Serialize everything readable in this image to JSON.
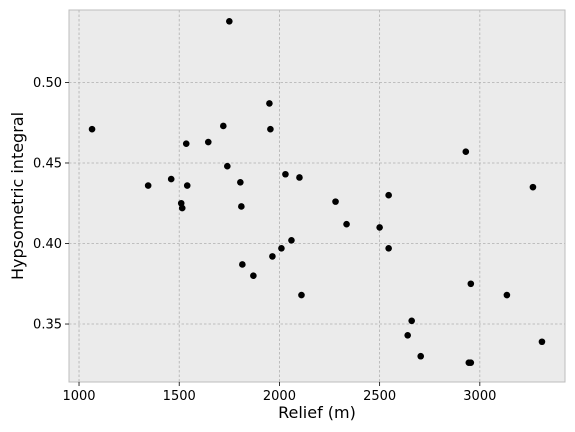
{
  "chart_data": {
    "type": "scatter",
    "title": "",
    "xlabel": "Relief (m)",
    "ylabel": "Hypsometric integral",
    "xlim": [
      950,
      3425
    ],
    "ylim": [
      0.314,
      0.545
    ],
    "xticks": [
      1000,
      1500,
      2000,
      2500,
      3000
    ],
    "xtick_labels": [
      "1000",
      "1500",
      "2000",
      "2500",
      "3000"
    ],
    "yticks": [
      0.35,
      0.4,
      0.45,
      0.5
    ],
    "ytick_labels": [
      "0.35",
      "0.40",
      "0.45",
      "0.50"
    ],
    "grid": true,
    "style": {
      "background": "#ebebeb",
      "grid_color": "#b0b0b0",
      "frame_color": "#bcbcbc",
      "marker_color": "#000000"
    },
    "points": [
      {
        "x": 1750,
        "y": 0.538
      },
      {
        "x": 1065,
        "y": 0.471
      },
      {
        "x": 1950,
        "y": 0.487
      },
      {
        "x": 1720,
        "y": 0.473
      },
      {
        "x": 1955,
        "y": 0.471
      },
      {
        "x": 1535,
        "y": 0.462
      },
      {
        "x": 1645,
        "y": 0.463
      },
      {
        "x": 1740,
        "y": 0.448
      },
      {
        "x": 2030,
        "y": 0.443
      },
      {
        "x": 2100,
        "y": 0.441
      },
      {
        "x": 1460,
        "y": 0.44
      },
      {
        "x": 1345,
        "y": 0.436
      },
      {
        "x": 1540,
        "y": 0.436
      },
      {
        "x": 1805,
        "y": 0.438
      },
      {
        "x": 1510,
        "y": 0.425
      },
      {
        "x": 1515,
        "y": 0.422
      },
      {
        "x": 1810,
        "y": 0.423
      },
      {
        "x": 2280,
        "y": 0.426
      },
      {
        "x": 2335,
        "y": 0.412
      },
      {
        "x": 2500,
        "y": 0.41
      },
      {
        "x": 2545,
        "y": 0.43
      },
      {
        "x": 2930,
        "y": 0.457
      },
      {
        "x": 3265,
        "y": 0.435
      },
      {
        "x": 2060,
        "y": 0.402
      },
      {
        "x": 2010,
        "y": 0.397
      },
      {
        "x": 2545,
        "y": 0.397
      },
      {
        "x": 1965,
        "y": 0.392
      },
      {
        "x": 1815,
        "y": 0.387
      },
      {
        "x": 1870,
        "y": 0.38
      },
      {
        "x": 2955,
        "y": 0.375
      },
      {
        "x": 2110,
        "y": 0.368
      },
      {
        "x": 3135,
        "y": 0.368
      },
      {
        "x": 2660,
        "y": 0.352
      },
      {
        "x": 2640,
        "y": 0.343
      },
      {
        "x": 3310,
        "y": 0.339
      },
      {
        "x": 2705,
        "y": 0.33
      },
      {
        "x": 2945,
        "y": 0.326
      },
      {
        "x": 2955,
        "y": 0.326
      }
    ]
  }
}
